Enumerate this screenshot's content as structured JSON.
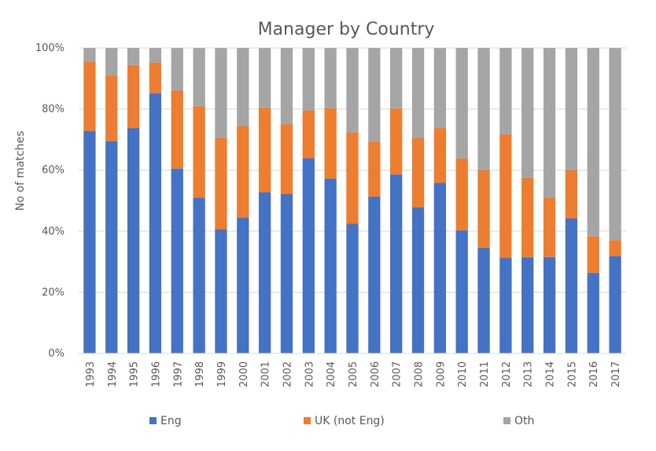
{
  "chart_data": {
    "type": "bar",
    "stacked": true,
    "title": "Manager by Country",
    "xlabel": "",
    "ylabel": "No of matches",
    "ylim": [
      0,
      100
    ],
    "y_ticks": [
      "0%",
      "20%",
      "40%",
      "60%",
      "80%",
      "100%"
    ],
    "y_tick_values": [
      0,
      20,
      40,
      60,
      80,
      100
    ],
    "grid": true,
    "legend_position": "bottom",
    "categories": [
      "1993",
      "1994",
      "1995",
      "1996",
      "1997",
      "1998",
      "1999",
      "2000",
      "2001",
      "2002",
      "2003",
      "2004",
      "2005",
      "2006",
      "2007",
      "2008",
      "2009",
      "2010",
      "2011",
      "2012",
      "2013",
      "2014",
      "2015",
      "2016",
      "2017"
    ],
    "series": [
      {
        "name": "Eng",
        "color": "#4472C4",
        "values": [
          72.8,
          69.5,
          73.8,
          85.2,
          60.5,
          51.0,
          40.6,
          44.5,
          52.8,
          52.2,
          63.9,
          57.2,
          42.5,
          51.3,
          58.6,
          47.8,
          55.8,
          40.3,
          34.6,
          31.3,
          31.5,
          31.5,
          44.2,
          26.3,
          31.9
        ]
      },
      {
        "name": "UK (not Eng)",
        "color": "#ED7D31",
        "values": [
          22.8,
          21.5,
          20.6,
          9.9,
          25.6,
          30.0,
          30.1,
          30.0,
          27.7,
          22.8,
          15.6,
          23.1,
          29.9,
          18.1,
          21.6,
          22.7,
          18.0,
          23.5,
          25.5,
          40.5,
          26.0,
          19.5,
          15.9,
          12.0,
          5.1
        ]
      },
      {
        "name": "Oth",
        "color": "#A5A5A5",
        "values": [
          4.4,
          9.0,
          5.6,
          4.9,
          13.9,
          19.0,
          29.3,
          25.5,
          19.5,
          25.0,
          20.5,
          19.7,
          27.6,
          30.6,
          19.8,
          29.5,
          26.2,
          36.2,
          39.9,
          28.2,
          42.5,
          49.0,
          39.9,
          61.7,
          63.0
        ]
      }
    ]
  }
}
